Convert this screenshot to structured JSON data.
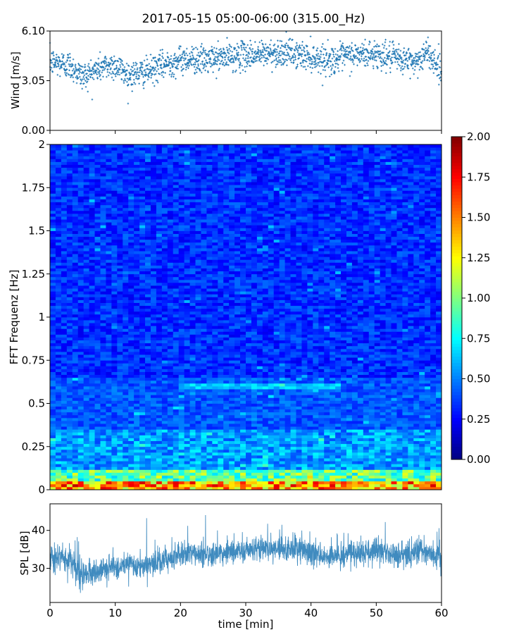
{
  "chart_data": {
    "title": "2017-05-15 05:00-06:00 (315.00_Hz)",
    "xlabel": "time [min]",
    "xlim": [
      0,
      60
    ],
    "xticks": [
      "0",
      "10",
      "20",
      "30",
      "40",
      "50",
      "60"
    ],
    "panels": [
      {
        "id": "wind",
        "type": "scatter",
        "ylabel": "Wind [m/s]",
        "ylim": [
          0,
          6.1
        ],
        "yticks": [
          "0.00",
          "3.05",
          "6.10"
        ],
        "color": "#1f77b4",
        "trend": [
          {
            "t": 0,
            "v": 4.2
          },
          {
            "t": 3,
            "v": 4.0
          },
          {
            "t": 5,
            "v": 3.3
          },
          {
            "t": 8,
            "v": 3.9
          },
          {
            "t": 10,
            "v": 4.0
          },
          {
            "t": 12,
            "v": 3.4
          },
          {
            "t": 15,
            "v": 3.6
          },
          {
            "t": 18,
            "v": 4.1
          },
          {
            "t": 21,
            "v": 4.4
          },
          {
            "t": 24,
            "v": 4.3
          },
          {
            "t": 27,
            "v": 4.5
          },
          {
            "t": 30,
            "v": 4.6
          },
          {
            "t": 33,
            "v": 4.7
          },
          {
            "t": 36,
            "v": 4.8
          },
          {
            "t": 40,
            "v": 4.5
          },
          {
            "t": 43,
            "v": 4.3
          },
          {
            "t": 46,
            "v": 4.6
          },
          {
            "t": 50,
            "v": 4.7
          },
          {
            "t": 53,
            "v": 4.4
          },
          {
            "t": 56,
            "v": 4.2
          },
          {
            "t": 58,
            "v": 4.8
          },
          {
            "t": 60,
            "v": 3.6
          }
        ]
      },
      {
        "id": "spectrogram",
        "type": "heatmap",
        "ylabel": "FFT Frequenz [Hz]",
        "ylim": [
          0,
          2
        ],
        "yticks": [
          "0",
          "0.25",
          "0.5",
          "0.75",
          "1",
          "1.25",
          "1.5",
          "1.75",
          "2"
        ],
        "colormap": "jet",
        "clim": [
          0,
          2
        ],
        "colorbar_ticks": [
          "0.00",
          "0.25",
          "0.50",
          "0.75",
          "1.00",
          "1.25",
          "1.50",
          "1.75",
          "2.00"
        ]
      },
      {
        "id": "spl",
        "type": "line",
        "ylabel": "SPL [dB]",
        "ylim": [
          21,
          47
        ],
        "yticks": [
          "30",
          "40"
        ],
        "color": "#1f77b4",
        "trend": [
          {
            "t": 0,
            "v": 33
          },
          {
            "t": 3,
            "v": 32
          },
          {
            "t": 5,
            "v": 28
          },
          {
            "t": 8,
            "v": 30
          },
          {
            "t": 12,
            "v": 30.5
          },
          {
            "t": 16,
            "v": 31
          },
          {
            "t": 20,
            "v": 34
          },
          {
            "t": 25,
            "v": 33.5
          },
          {
            "t": 30,
            "v": 35
          },
          {
            "t": 35,
            "v": 35.5
          },
          {
            "t": 38,
            "v": 35
          },
          {
            "t": 42,
            "v": 33
          },
          {
            "t": 46,
            "v": 34
          },
          {
            "t": 50,
            "v": 34.5
          },
          {
            "t": 55,
            "v": 33
          },
          {
            "t": 57,
            "v": 35
          },
          {
            "t": 60,
            "v": 32
          }
        ]
      }
    ]
  }
}
